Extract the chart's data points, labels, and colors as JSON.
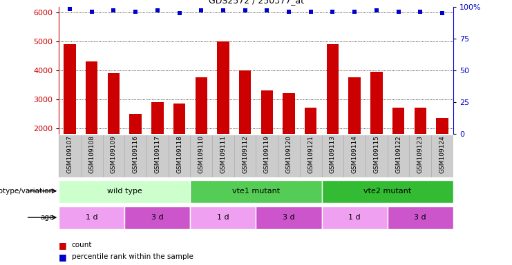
{
  "title": "GDS2572 / 250377_at",
  "samples": [
    "GSM109107",
    "GSM109108",
    "GSM109109",
    "GSM109116",
    "GSM109117",
    "GSM109118",
    "GSM109110",
    "GSM109111",
    "GSM109112",
    "GSM109119",
    "GSM109120",
    "GSM109121",
    "GSM109113",
    "GSM109114",
    "GSM109115",
    "GSM109122",
    "GSM109123",
    "GSM109124"
  ],
  "counts": [
    4900,
    4300,
    3900,
    2500,
    2900,
    2850,
    3750,
    5000,
    4000,
    3300,
    3200,
    2700,
    4900,
    3750,
    3950,
    2700,
    2700,
    2350
  ],
  "percentile_ranks": [
    98,
    96,
    97,
    96,
    97,
    95,
    97,
    97,
    97,
    97,
    96,
    96,
    96,
    96,
    97,
    96,
    96,
    95
  ],
  "ylim_left": [
    1800,
    6200
  ],
  "ylim_right": [
    0,
    100
  ],
  "yticks_left": [
    2000,
    3000,
    4000,
    5000,
    6000
  ],
  "yticks_right": [
    0,
    25,
    50,
    75,
    100
  ],
  "bar_color": "#cc0000",
  "dot_color": "#0000cc",
  "genotype_groups": [
    {
      "label": "wild type",
      "start": 0,
      "end": 6,
      "color": "#ccffcc"
    },
    {
      "label": "vte1 mutant",
      "start": 6,
      "end": 12,
      "color": "#55cc55"
    },
    {
      "label": "vte2 mutant",
      "start": 12,
      "end": 18,
      "color": "#33bb33"
    }
  ],
  "age_groups": [
    {
      "label": "1 d",
      "start": 0,
      "end": 3,
      "color": "#f0a0f0"
    },
    {
      "label": "3 d",
      "start": 3,
      "end": 6,
      "color": "#cc55cc"
    },
    {
      "label": "1 d",
      "start": 6,
      "end": 9,
      "color": "#f0a0f0"
    },
    {
      "label": "3 d",
      "start": 9,
      "end": 12,
      "color": "#cc55cc"
    },
    {
      "label": "1 d",
      "start": 12,
      "end": 15,
      "color": "#f0a0f0"
    },
    {
      "label": "3 d",
      "start": 15,
      "end": 18,
      "color": "#cc55cc"
    }
  ],
  "legend_count_label": "count",
  "legend_pct_label": "percentile rank within the sample",
  "genotype_label": "genotype/variation",
  "age_label": "age",
  "background_color": "#ffffff",
  "xtick_bg_color": "#cccccc",
  "grid_color": "#000000"
}
